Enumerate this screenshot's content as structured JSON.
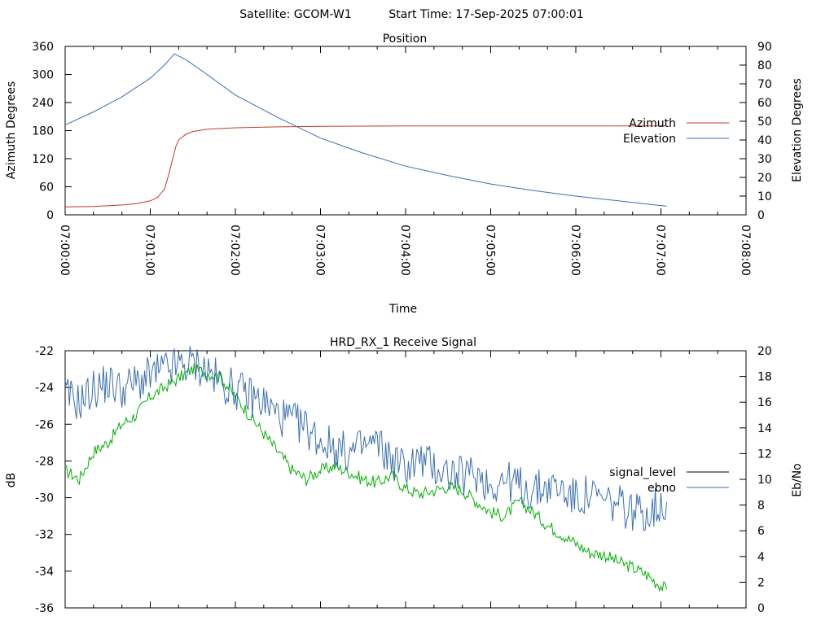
{
  "header": {
    "satellite_text": "Satellite: GCOM-W1",
    "start_time_text": "Start Time: 17-Sep-2025 07:00:01"
  },
  "colors": {
    "azimuth": "#c0392b",
    "elevation": "#3a6fb0",
    "signal_level": "#000000",
    "ebno": "#3a6fb0",
    "signal_green": "#00b000",
    "axis": "#000000"
  },
  "chart_data": [
    {
      "type": "line",
      "title": "Position",
      "xlabel": "Time",
      "ylabel": "Azimuth Degrees",
      "y2label": "Elevation Degrees",
      "xlim_seconds": [
        0,
        480
      ],
      "x_tick_labels": [
        "07:00:00",
        "07:01:00",
        "07:02:00",
        "07:03:00",
        "07:04:00",
        "07:05:00",
        "07:06:00",
        "07:07:00",
        "07:08:00"
      ],
      "ylim": [
        0,
        360
      ],
      "y_ticks": [
        0,
        60,
        120,
        180,
        240,
        300,
        360
      ],
      "y2lim": [
        0,
        90
      ],
      "y2_ticks": [
        0,
        10,
        20,
        30,
        40,
        50,
        60,
        70,
        80,
        90
      ],
      "legend_placement": "right",
      "series": [
        {
          "name": "Azimuth",
          "axis": "left",
          "x": [
            0,
            20,
            40,
            50,
            60,
            65,
            70,
            72,
            75,
            78,
            80,
            85,
            90,
            100,
            120,
            150,
            180,
            240,
            300,
            360,
            424
          ],
          "y": [
            17,
            18,
            21,
            24,
            30,
            37,
            55,
            75,
            110,
            145,
            160,
            172,
            178,
            183,
            186,
            188,
            189,
            190,
            190,
            190,
            190
          ]
        },
        {
          "name": "Elevation",
          "axis": "right",
          "x": [
            0,
            20,
            40,
            60,
            70,
            77,
            85,
            100,
            120,
            150,
            180,
            210,
            240,
            270,
            300,
            330,
            360,
            390,
            424
          ],
          "y": [
            48,
            55,
            63,
            73,
            80,
            86,
            83,
            75,
            64,
            52,
            41,
            33,
            26,
            21,
            16.5,
            13,
            10,
            7.5,
            4.6
          ]
        }
      ]
    },
    {
      "type": "line",
      "title": "HRD_RX_1 Receive Signal",
      "ylabel": "dB",
      "y2label": "Eb/No",
      "xlim_seconds": [
        0,
        480
      ],
      "ylim": [
        -36,
        -22
      ],
      "y_ticks": [
        -36,
        -34,
        -32,
        -30,
        -28,
        -26,
        -24,
        -22
      ],
      "y2lim": [
        0,
        20
      ],
      "y2_ticks": [
        0,
        2,
        4,
        6,
        8,
        10,
        12,
        14,
        16,
        18,
        20
      ],
      "legend_placement": "right",
      "series": [
        {
          "name": "signal_level",
          "axis": "left",
          "color_key": "signal_green",
          "x": [
            0,
            10,
            20,
            30,
            40,
            50,
            60,
            70,
            80,
            90,
            100,
            110,
            120,
            130,
            140,
            150,
            160,
            170,
            180,
            190,
            200,
            210,
            220,
            230,
            240,
            250,
            260,
            270,
            280,
            290,
            300,
            310,
            320,
            330,
            340,
            350,
            360,
            370,
            380,
            390,
            400,
            410,
            420,
            424
          ],
          "y": [
            -28.5,
            -29.0,
            -27.5,
            -27.0,
            -26.0,
            -25.5,
            -24.5,
            -24.0,
            -23.5,
            -23.0,
            -23.2,
            -23.5,
            -24.5,
            -25.5,
            -26.5,
            -27.5,
            -28.5,
            -29.0,
            -28.5,
            -28.3,
            -28.6,
            -29.0,
            -29.2,
            -28.8,
            -29.5,
            -29.8,
            -29.6,
            -29.4,
            -29.6,
            -30.2,
            -30.8,
            -31.0,
            -30.2,
            -30.8,
            -31.5,
            -32.0,
            -32.5,
            -33.0,
            -33.1,
            -33.5,
            -33.8,
            -34.2,
            -34.8,
            -35.0
          ]
        },
        {
          "name": "ebno",
          "axis": "right",
          "x": [
            0,
            10,
            20,
            30,
            40,
            50,
            60,
            70,
            80,
            90,
            100,
            110,
            120,
            130,
            140,
            150,
            160,
            170,
            180,
            190,
            200,
            210,
            220,
            230,
            240,
            250,
            260,
            270,
            280,
            290,
            300,
            310,
            320,
            330,
            340,
            350,
            360,
            370,
            380,
            390,
            400,
            410,
            420,
            424
          ],
          "y": [
            16.5,
            16,
            17,
            17.5,
            17,
            17.5,
            18,
            18.5,
            18.8,
            19,
            18.5,
            17.5,
            17,
            16.5,
            16,
            15,
            14.5,
            14,
            13,
            12.5,
            12,
            12.5,
            12.8,
            11.5,
            11,
            11.5,
            11,
            10.5,
            10.2,
            10.5,
            9.5,
            10,
            9.5,
            9,
            9.5,
            9.2,
            8.5,
            8.8,
            8.2,
            8,
            7.5,
            7.5,
            8,
            8.2
          ]
        }
      ]
    }
  ],
  "legend": {
    "azimuth": "Azimuth",
    "elevation": "Elevation",
    "signal_level": "signal_level",
    "ebno": "ebno"
  }
}
